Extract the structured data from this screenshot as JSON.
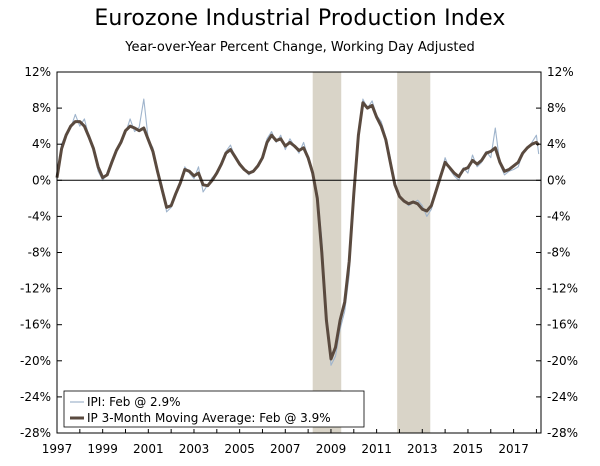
{
  "chart_data": {
    "type": "line",
    "title": "Eurozone Industrial Production Index",
    "subtitle": "Year-over-Year Percent Change, Working Day Adjusted",
    "xlabel": "",
    "ylabel": "",
    "xlim": [
      1997,
      2018.2
    ],
    "ylim": [
      -28,
      12
    ],
    "y_ticks": [
      12,
      8,
      4,
      0,
      -4,
      -8,
      -12,
      -16,
      -20,
      -24,
      -28
    ],
    "y_tick_labels_left": [
      "12%",
      "8%",
      "4%",
      "0%",
      "-4%",
      "-8%",
      "-12%",
      "-16%",
      "-20%",
      "-24%",
      "-28%"
    ],
    "y_tick_labels_right": [
      "12%",
      "8%",
      "4%",
      "0%",
      "-4%",
      "-8%",
      "-12%",
      "-16%",
      "-20%",
      "-24%",
      "-28%"
    ],
    "x_ticks": [
      1997,
      1999,
      2001,
      2003,
      2005,
      2007,
      2009,
      2011,
      2013,
      2015,
      2017
    ],
    "x_tick_labels": [
      "1997",
      "1999",
      "2001",
      "2003",
      "2005",
      "2007",
      "2009",
      "2011",
      "2013",
      "2015",
      "2017"
    ],
    "grid": false,
    "legend_position": "bottom-left",
    "recessions": [
      {
        "start": 2008.2,
        "end": 2009.45
      },
      {
        "start": 2011.9,
        "end": 2013.35
      }
    ],
    "series": [
      {
        "name": "IPI: Feb @ 2.9%",
        "color": "#9fb4cc",
        "style": "thin",
        "x": [
          1997.0,
          1997.2,
          1997.4,
          1997.6,
          1997.8,
          1998.0,
          1998.2,
          1998.4,
          1998.6,
          1998.8,
          1999.0,
          1999.2,
          1999.4,
          1999.6,
          1999.8,
          2000.0,
          2000.2,
          2000.4,
          2000.6,
          2000.8,
          2001.0,
          2001.2,
          2001.4,
          2001.6,
          2001.8,
          2002.0,
          2002.2,
          2002.4,
          2002.6,
          2002.8,
          2003.0,
          2003.2,
          2003.4,
          2003.6,
          2003.8,
          2004.0,
          2004.2,
          2004.4,
          2004.6,
          2004.8,
          2005.0,
          2005.2,
          2005.4,
          2005.6,
          2005.8,
          2006.0,
          2006.2,
          2006.4,
          2006.6,
          2006.8,
          2007.0,
          2007.2,
          2007.4,
          2007.6,
          2007.8,
          2008.0,
          2008.2,
          2008.4,
          2008.6,
          2008.8,
          2009.0,
          2009.2,
          2009.4,
          2009.6,
          2009.8,
          2010.0,
          2010.2,
          2010.4,
          2010.6,
          2010.8,
          2011.0,
          2011.2,
          2011.4,
          2011.6,
          2011.8,
          2012.0,
          2012.2,
          2012.4,
          2012.6,
          2012.8,
          2013.0,
          2013.2,
          2013.4,
          2013.6,
          2013.8,
          2014.0,
          2014.2,
          2014.4,
          2014.6,
          2014.8,
          2015.0,
          2015.2,
          2015.4,
          2015.6,
          2015.8,
          2016.0,
          2016.2,
          2016.4,
          2016.6,
          2016.8,
          2017.0,
          2017.2,
          2017.4,
          2017.6,
          2017.8,
          2018.0,
          2018.1
        ],
        "values": [
          0.2,
          4.0,
          5.2,
          5.8,
          7.3,
          6.0,
          6.8,
          4.8,
          3.6,
          1.0,
          0.0,
          0.8,
          2.2,
          3.2,
          4.4,
          5.2,
          6.8,
          5.4,
          5.9,
          9.0,
          4.5,
          3.6,
          1.2,
          -0.5,
          -3.5,
          -3.0,
          -1.5,
          -0.5,
          1.5,
          0.8,
          0.2,
          1.5,
          -1.3,
          -0.5,
          0.3,
          0.8,
          1.8,
          3.2,
          3.9,
          2.5,
          2.0,
          1.2,
          0.6,
          1.0,
          1.5,
          2.5,
          4.6,
          5.4,
          4.2,
          5.0,
          3.4,
          4.6,
          3.8,
          3.0,
          4.2,
          2.5,
          1.0,
          -1.5,
          -6.5,
          -15.0,
          -20.5,
          -19.5,
          -16.5,
          -14.5,
          -10.5,
          -1.0,
          4.5,
          9.0,
          8.0,
          8.8,
          7.2,
          6.5,
          4.8,
          2.5,
          -0.5,
          -1.8,
          -2.2,
          -2.8,
          -2.5,
          -2.2,
          -2.8,
          -4.0,
          -3.2,
          -1.0,
          0.5,
          2.5,
          1.2,
          0.5,
          0.0,
          1.4,
          0.8,
          2.8,
          1.5,
          2.0,
          3.2,
          2.5,
          5.8,
          1.8,
          0.6,
          1.0,
          1.2,
          1.5,
          3.0,
          3.5,
          4.2,
          5.0,
          2.9
        ]
      },
      {
        "name": "IP 3-Month Moving Average: Feb @ 3.9%",
        "color": "#5a4a3f",
        "style": "thick",
        "x": [
          1997.0,
          1997.2,
          1997.4,
          1997.6,
          1997.8,
          1998.0,
          1998.2,
          1998.4,
          1998.6,
          1998.8,
          1999.0,
          1999.2,
          1999.4,
          1999.6,
          1999.8,
          2000.0,
          2000.2,
          2000.4,
          2000.6,
          2000.8,
          2001.0,
          2001.2,
          2001.4,
          2001.6,
          2001.8,
          2002.0,
          2002.2,
          2002.4,
          2002.6,
          2002.8,
          2003.0,
          2003.2,
          2003.4,
          2003.6,
          2003.8,
          2004.0,
          2004.2,
          2004.4,
          2004.6,
          2004.8,
          2005.0,
          2005.2,
          2005.4,
          2005.6,
          2005.8,
          2006.0,
          2006.2,
          2006.4,
          2006.6,
          2006.8,
          2007.0,
          2007.2,
          2007.4,
          2007.6,
          2007.8,
          2008.0,
          2008.2,
          2008.4,
          2008.6,
          2008.8,
          2009.0,
          2009.2,
          2009.4,
          2009.6,
          2009.8,
          2010.0,
          2010.2,
          2010.4,
          2010.6,
          2010.8,
          2011.0,
          2011.2,
          2011.4,
          2011.6,
          2011.8,
          2012.0,
          2012.2,
          2012.4,
          2012.6,
          2012.8,
          2013.0,
          2013.2,
          2013.4,
          2013.6,
          2013.8,
          2014.0,
          2014.2,
          2014.4,
          2014.6,
          2014.8,
          2015.0,
          2015.2,
          2015.4,
          2015.6,
          2015.8,
          2016.0,
          2016.2,
          2016.4,
          2016.6,
          2016.8,
          2017.0,
          2017.2,
          2017.4,
          2017.6,
          2017.8,
          2018.0,
          2018.1
        ],
        "values": [
          0.3,
          3.5,
          5.0,
          6.0,
          6.5,
          6.5,
          6.0,
          4.8,
          3.5,
          1.5,
          0.3,
          0.6,
          2.0,
          3.3,
          4.2,
          5.5,
          6.0,
          5.8,
          5.5,
          5.8,
          4.5,
          3.2,
          1.0,
          -1.0,
          -3.0,
          -2.8,
          -1.5,
          -0.3,
          1.2,
          1.0,
          0.5,
          0.8,
          -0.5,
          -0.6,
          0.0,
          0.8,
          1.8,
          3.0,
          3.4,
          2.6,
          1.8,
          1.2,
          0.8,
          1.0,
          1.6,
          2.5,
          4.2,
          5.0,
          4.4,
          4.6,
          3.8,
          4.2,
          3.8,
          3.3,
          3.6,
          2.5,
          0.8,
          -2.0,
          -8.0,
          -15.5,
          -19.8,
          -18.5,
          -15.5,
          -13.5,
          -9.0,
          -1.5,
          5.0,
          8.6,
          8.0,
          8.3,
          7.0,
          6.0,
          4.5,
          2.0,
          -0.5,
          -1.8,
          -2.3,
          -2.6,
          -2.4,
          -2.6,
          -3.2,
          -3.4,
          -2.8,
          -1.2,
          0.4,
          2.0,
          1.4,
          0.8,
          0.4,
          1.2,
          1.4,
          2.2,
          1.8,
          2.2,
          3.0,
          3.2,
          3.6,
          2.0,
          1.0,
          1.2,
          1.6,
          2.0,
          3.0,
          3.6,
          4.0,
          4.2,
          3.9
        ]
      }
    ]
  }
}
